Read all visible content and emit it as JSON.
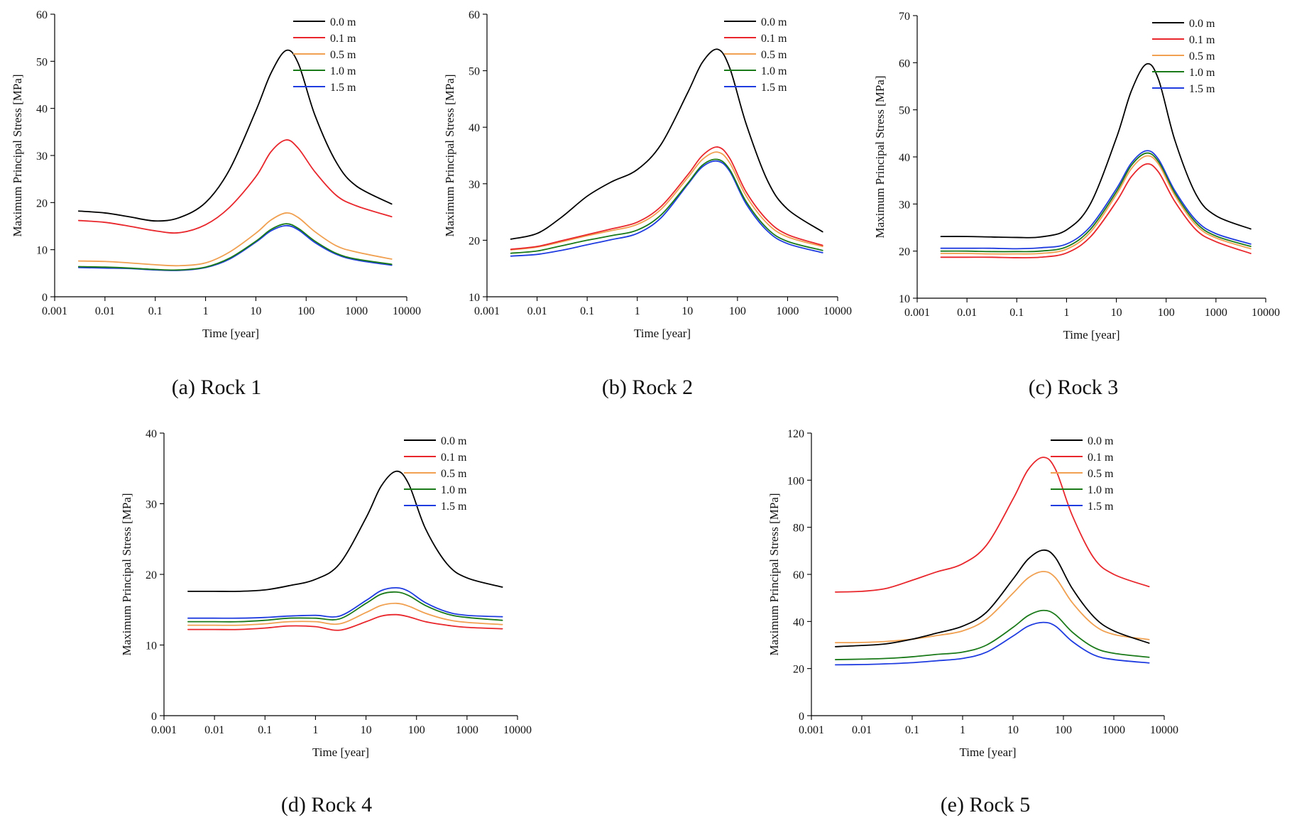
{
  "figure": {
    "panels": [
      {
        "caption": "(a) Rock 1"
      },
      {
        "caption": "(b) Rock 2"
      },
      {
        "caption": "(c) Rock 3"
      },
      {
        "caption": "(d) Rock 4"
      },
      {
        "caption": "(e) Rock 5"
      }
    ]
  },
  "colors": {
    "0.0 m": "#000000",
    "0.1 m": "#e8262b",
    "0.5 m": "#f0a050",
    "1.0 m": "#1a7a1a",
    "1.5 m": "#1f3ce0"
  },
  "chart_data": [
    {
      "type": "line",
      "title": "(a) Rock 1",
      "xlabel": "Time [year]",
      "ylabel": "Maximum Principal Stress [MPa]",
      "xscale": "log",
      "xlim": [
        0.001,
        10000
      ],
      "ylim": [
        0,
        60
      ],
      "xticks": [
        "0.001",
        "0.01",
        "0.1",
        "1",
        "10",
        "100",
        "1000",
        "10000"
      ],
      "yticks": [
        "0",
        "10",
        "20",
        "30",
        "40",
        "50",
        "60"
      ],
      "legend_position": "top-right",
      "x": [
        0.003,
        0.01,
        0.03,
        0.1,
        0.3,
        1,
        3,
        10,
        20,
        40,
        70,
        150,
        400,
        1000,
        5000
      ],
      "series": [
        {
          "name": "0.0 m",
          "values": [
            18.2,
            17.8,
            17.0,
            16.1,
            16.8,
            20.0,
            27.0,
            39.5,
            47.5,
            52.3,
            49.5,
            38.5,
            28.5,
            23.5,
            19.7
          ]
        },
        {
          "name": "0.1 m",
          "values": [
            16.2,
            15.8,
            15.0,
            14.0,
            13.6,
            15.3,
            19.0,
            25.5,
            30.8,
            33.3,
            31.5,
            26.5,
            21.5,
            19.3,
            17.0
          ]
        },
        {
          "name": "0.5 m",
          "values": [
            7.6,
            7.5,
            7.2,
            6.8,
            6.6,
            7.2,
            9.5,
            13.5,
            16.3,
            17.8,
            16.8,
            13.8,
            10.8,
            9.5,
            8.0
          ]
        },
        {
          "name": "1.0 m",
          "values": [
            6.4,
            6.3,
            6.1,
            5.8,
            5.7,
            6.3,
            8.2,
            11.8,
            14.3,
            15.5,
            14.5,
            11.8,
            9.2,
            8.0,
            6.9
          ]
        },
        {
          "name": "1.5 m",
          "values": [
            6.2,
            6.1,
            6.0,
            5.7,
            5.6,
            6.2,
            8.0,
            11.6,
            14.0,
            15.1,
            14.2,
            11.5,
            9.0,
            7.8,
            6.7
          ]
        }
      ]
    },
    {
      "type": "line",
      "title": "(b) Rock 2",
      "xlabel": "Time [year]",
      "ylabel": "Maximum Principal Stress [MPa]",
      "xscale": "log",
      "xlim": [
        0.001,
        10000
      ],
      "ylim": [
        10,
        60
      ],
      "xticks": [
        "0.001",
        "0.01",
        "0.1",
        "1",
        "10",
        "100",
        "1000",
        "10000"
      ],
      "yticks": [
        "10",
        "20",
        "30",
        "40",
        "50",
        "60"
      ],
      "legend_position": "top-right",
      "x": [
        0.003,
        0.01,
        0.03,
        0.1,
        0.3,
        1,
        3,
        10,
        20,
        40,
        70,
        150,
        400,
        1000,
        5000
      ],
      "series": [
        {
          "name": "0.0 m",
          "values": [
            20.2,
            21.2,
            24.0,
            27.8,
            30.3,
            32.5,
            37.0,
            46.0,
            51.5,
            53.8,
            50.5,
            40.5,
            30.5,
            25.5,
            21.5
          ]
        },
        {
          "name": "0.1 m",
          "values": [
            18.4,
            18.9,
            19.9,
            21.0,
            22.0,
            23.2,
            26.0,
            31.5,
            35.0,
            36.5,
            34.5,
            28.5,
            23.5,
            21.0,
            19.1
          ]
        },
        {
          "name": "0.5 m",
          "values": [
            18.3,
            18.8,
            19.7,
            20.8,
            21.7,
            22.8,
            25.5,
            31.0,
            34.3,
            35.6,
            33.7,
            27.8,
            22.9,
            20.6,
            18.9
          ]
        },
        {
          "name": "1.0 m",
          "values": [
            17.7,
            18.1,
            19.0,
            20.0,
            20.8,
            21.8,
            24.5,
            30.0,
            33.3,
            34.3,
            32.5,
            26.8,
            22.0,
            19.8,
            18.2
          ]
        },
        {
          "name": "1.5 m",
          "values": [
            17.2,
            17.5,
            18.2,
            19.2,
            20.1,
            21.2,
            24.0,
            29.8,
            33.0,
            34.0,
            32.2,
            26.4,
            21.6,
            19.4,
            17.8
          ]
        }
      ]
    },
    {
      "type": "line",
      "title": "(c) Rock 3",
      "xlabel": "Time [year]",
      "ylabel": "Maximum Principal Stress [MPa]",
      "xscale": "log",
      "xlim": [
        0.001,
        10000
      ],
      "ylim": [
        10,
        70
      ],
      "xticks": [
        "0.001",
        "0.01",
        "0.1",
        "1",
        "10",
        "100",
        "1000",
        "10000"
      ],
      "yticks": [
        "10",
        "20",
        "30",
        "40",
        "50",
        "60",
        "70"
      ],
      "legend_position": "top-right",
      "x": [
        0.003,
        0.01,
        0.03,
        0.1,
        0.3,
        1,
        3,
        10,
        20,
        40,
        70,
        150,
        400,
        1000,
        5000
      ],
      "series": [
        {
          "name": "0.0 m",
          "values": [
            23.1,
            23.1,
            23.0,
            22.9,
            23.0,
            24.5,
            30.0,
            44.0,
            54.0,
            59.7,
            56.5,
            43.5,
            32.0,
            27.5,
            24.7
          ]
        },
        {
          "name": "0.1 m",
          "values": [
            18.7,
            18.7,
            18.7,
            18.6,
            18.7,
            19.6,
            23.0,
            30.5,
            35.8,
            38.5,
            36.8,
            30.5,
            24.5,
            22.0,
            19.5
          ]
        },
        {
          "name": "0.5 m",
          "values": [
            19.5,
            19.5,
            19.4,
            19.4,
            19.5,
            20.4,
            24.0,
            32.0,
            37.5,
            40.2,
            38.5,
            31.8,
            25.5,
            22.8,
            20.5
          ]
        },
        {
          "name": "1.0 m",
          "values": [
            20.0,
            20.0,
            19.9,
            19.9,
            20.0,
            20.9,
            24.6,
            32.6,
            38.2,
            40.8,
            39.0,
            32.3,
            26.0,
            23.2,
            21.0
          ]
        },
        {
          "name": "1.5 m",
          "values": [
            20.6,
            20.6,
            20.6,
            20.5,
            20.7,
            21.5,
            25.2,
            33.2,
            38.7,
            41.3,
            39.5,
            32.8,
            26.5,
            23.7,
            21.5
          ]
        }
      ]
    },
    {
      "type": "line",
      "title": "(d) Rock 4",
      "xlabel": "Time [year]",
      "ylabel": "Maximum Principal Stress [MPa]",
      "xscale": "log",
      "xlim": [
        0.001,
        10000
      ],
      "ylim": [
        0,
        40
      ],
      "xticks": [
        "0.001",
        "0.01",
        "0.1",
        "1",
        "10",
        "100",
        "1000",
        "10000"
      ],
      "yticks": [
        "0",
        "10",
        "20",
        "30",
        "40"
      ],
      "legend_position": "top-right",
      "x": [
        0.003,
        0.01,
        0.03,
        0.1,
        0.3,
        1,
        3,
        10,
        20,
        40,
        70,
        150,
        400,
        1000,
        5000
      ],
      "series": [
        {
          "name": "0.0 m",
          "values": [
            17.6,
            17.6,
            17.6,
            17.8,
            18.4,
            19.3,
            21.5,
            28.0,
            32.5,
            34.6,
            32.8,
            26.5,
            21.5,
            19.5,
            18.2
          ]
        },
        {
          "name": "0.1 m",
          "values": [
            12.2,
            12.2,
            12.2,
            12.4,
            12.7,
            12.6,
            12.1,
            13.3,
            14.1,
            14.3,
            14.0,
            13.3,
            12.8,
            12.5,
            12.3
          ]
        },
        {
          "name": "0.5 m",
          "values": [
            12.8,
            12.8,
            12.8,
            13.0,
            13.3,
            13.3,
            13.0,
            14.6,
            15.6,
            15.9,
            15.5,
            14.5,
            13.6,
            13.2,
            12.9
          ]
        },
        {
          "name": "1.0 m",
          "values": [
            13.3,
            13.3,
            13.3,
            13.5,
            13.8,
            13.8,
            13.7,
            15.9,
            17.2,
            17.5,
            17.0,
            15.6,
            14.4,
            13.9,
            13.5
          ]
        },
        {
          "name": "1.5 m",
          "values": [
            13.8,
            13.8,
            13.8,
            13.9,
            14.1,
            14.2,
            14.1,
            16.3,
            17.7,
            18.1,
            17.6,
            16.0,
            14.7,
            14.2,
            14.0
          ]
        }
      ]
    },
    {
      "type": "line",
      "title": "(e) Rock 5",
      "xlabel": "Time [year]",
      "ylabel": "Maximum Principal Stress [MPa]",
      "xscale": "log",
      "xlim": [
        0.001,
        10000
      ],
      "ylim": [
        0,
        120
      ],
      "xticks": [
        "0.001",
        "0.01",
        "0.1",
        "1",
        "10",
        "100",
        "1000",
        "10000"
      ],
      "yticks": [
        "0",
        "20",
        "40",
        "60",
        "80",
        "100",
        "120"
      ],
      "legend_position": "top-right",
      "x": [
        0.003,
        0.01,
        0.03,
        0.1,
        0.3,
        1,
        3,
        10,
        20,
        40,
        70,
        150,
        400,
        1000,
        5000
      ],
      "series": [
        {
          "name": "0.0 m",
          "values": [
            29.3,
            29.8,
            30.5,
            32.5,
            35.0,
            38.0,
            44.0,
            58.0,
            66.5,
            70.3,
            67.0,
            54.0,
            42.0,
            36.0,
            30.8
          ]
        },
        {
          "name": "0.1 m",
          "values": [
            52.5,
            52.8,
            54.0,
            57.5,
            61.0,
            64.5,
            72.5,
            92.0,
            104.5,
            109.7,
            104.5,
            85.0,
            67.0,
            60.0,
            54.8
          ]
        },
        {
          "name": "0.5 m",
          "values": [
            31.0,
            31.1,
            31.5,
            32.5,
            34.0,
            36.0,
            41.0,
            52.0,
            58.5,
            61.2,
            58.5,
            48.0,
            38.5,
            34.5,
            32.3
          ]
        },
        {
          "name": "1.0 m",
          "values": [
            23.8,
            24.0,
            24.3,
            25.0,
            26.0,
            27.0,
            30.0,
            37.5,
            42.5,
            44.7,
            42.8,
            35.5,
            29.0,
            26.5,
            24.8
          ]
        },
        {
          "name": "1.5 m",
          "values": [
            21.6,
            21.7,
            22.0,
            22.5,
            23.3,
            24.3,
            27.0,
            33.8,
            38.0,
            39.6,
            38.0,
            31.5,
            25.8,
            23.8,
            22.4
          ]
        }
      ]
    }
  ]
}
